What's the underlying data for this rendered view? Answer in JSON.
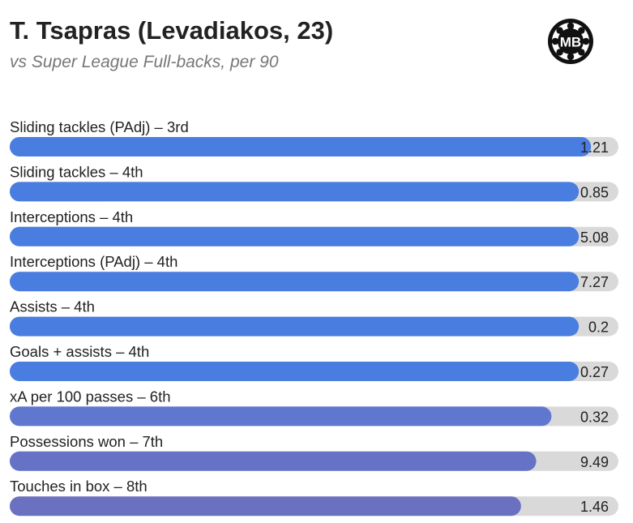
{
  "header": {
    "title": "T. Tsapras (Levadiakos, 23)",
    "subtitle": "vs Super League Full-backs, per 90",
    "logo_text": "MB"
  },
  "chart_data": {
    "type": "bar",
    "orientation": "horizontal",
    "value_type": "percentile",
    "xlim": [
      0,
      100
    ],
    "grid": false,
    "track_color": "#d9d9d9",
    "rows": [
      {
        "label": "Sliding tackles (PAdj) – 3rd",
        "value_label": "1.21",
        "percentile": 95.5,
        "color": "#4a7de0"
      },
      {
        "label": "Sliding tackles – 4th",
        "value_label": "0.85",
        "percentile": 93.5,
        "color": "#4a7de0"
      },
      {
        "label": "Interceptions – 4th",
        "value_label": "5.08",
        "percentile": 93.5,
        "color": "#4a7de0"
      },
      {
        "label": "Interceptions (PAdj) – 4th",
        "value_label": "7.27",
        "percentile": 93.5,
        "color": "#4a7de0"
      },
      {
        "label": "Assists – 4th",
        "value_label": "0.2",
        "percentile": 93.5,
        "color": "#4a7de0"
      },
      {
        "label": "Goals + assists – 4th",
        "value_label": "0.27",
        "percentile": 93.5,
        "color": "#4a7de0"
      },
      {
        "label": "xA per 100 passes – 6th",
        "value_label": "0.32",
        "percentile": 89,
        "color": "#5f77cf"
      },
      {
        "label": "Possessions won – 7th",
        "value_label": "9.49",
        "percentile": 86.5,
        "color": "#6672c6"
      },
      {
        "label": "Touches in box – 8th",
        "value_label": "1.46",
        "percentile": 84,
        "color": "#6b70c0"
      }
    ]
  }
}
